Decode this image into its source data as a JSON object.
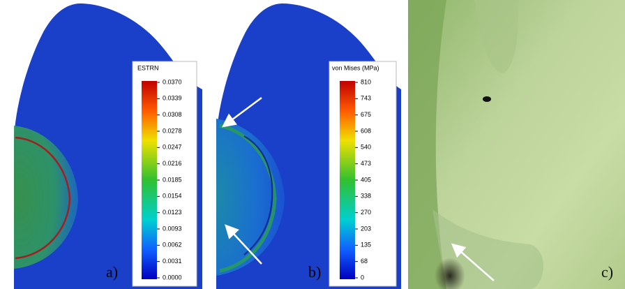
{
  "panels": [
    {
      "colorbar": {
        "title": "ESTRN",
        "ticks": [
          "0.0370",
          "0.0339",
          "0.0308",
          "0.0278",
          "0.0247",
          "0.0216",
          "0.0185",
          "0.0154",
          "0.0123",
          "0.0093",
          "0.0062",
          "0.0031",
          "0.0000"
        ]
      },
      "label": "a)"
    },
    {
      "colorbar": {
        "title": "von Mises (MPa)",
        "ticks": [
          "810",
          "743",
          "675",
          "608",
          "540",
          "473",
          "405",
          "338",
          "270",
          "203",
          "135",
          "68",
          "0"
        ]
      },
      "label": "b)"
    },
    {
      "label": "c)"
    }
  ]
}
